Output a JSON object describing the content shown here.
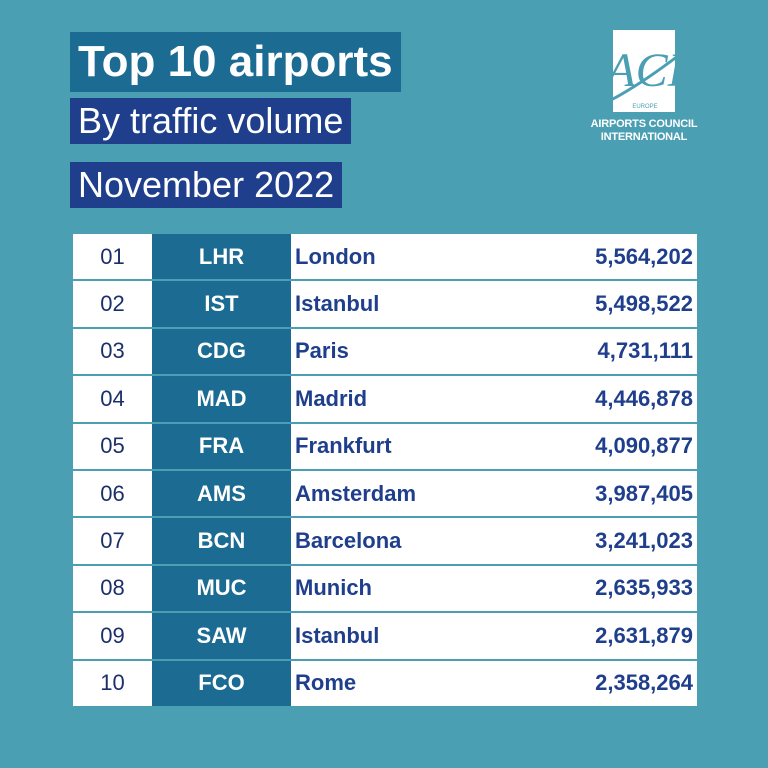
{
  "header": {
    "title": "Top 10 airports",
    "subtitle": "By traffic volume",
    "period": "November 2022"
  },
  "logo": {
    "mark": "ACI",
    "region": "EUROPE",
    "line1": "AIRPORTS COUNCIL",
    "line2": "INTERNATIONAL"
  },
  "rows": [
    {
      "rank": "01",
      "code": "LHR",
      "city": "London",
      "value": "5,564,202"
    },
    {
      "rank": "02",
      "code": "IST",
      "city": "Istanbul",
      "value": "5,498,522"
    },
    {
      "rank": "03",
      "code": "CDG",
      "city": "Paris",
      "value": "4,731,111"
    },
    {
      "rank": "04",
      "code": "MAD",
      "city": "Madrid",
      "value": "4,446,878"
    },
    {
      "rank": "05",
      "code": "FRA",
      "city": "Frankfurt",
      "value": "4,090,877"
    },
    {
      "rank": "06",
      "code": "AMS",
      "city": "Amsterdam",
      "value": "3,987,405"
    },
    {
      "rank": "07",
      "code": "BCN",
      "city": "Barcelona",
      "value": "3,241,023"
    },
    {
      "rank": "08",
      "code": "MUC",
      "city": "Munich",
      "value": "2,635,933"
    },
    {
      "rank": "09",
      "code": "SAW",
      "city": "Istanbul",
      "value": "2,631,879"
    },
    {
      "rank": "10",
      "code": "FCO",
      "city": "Rome",
      "value": "2,358,264"
    }
  ]
}
